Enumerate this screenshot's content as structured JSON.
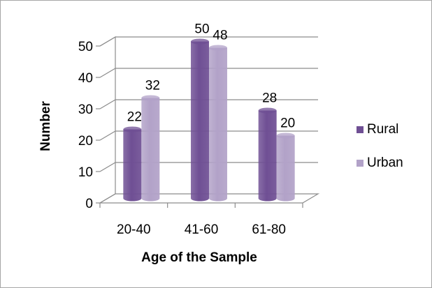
{
  "chart_data": {
    "type": "bar",
    "style": "3d-cylinder",
    "xlabel": "Age of the Sample",
    "ylabel": "Number",
    "categories": [
      "20-40",
      "41-60",
      "61-80"
    ],
    "series": [
      {
        "name": "Rural",
        "values": [
          22,
          50,
          28
        ],
        "color": "#6f4f94"
      },
      {
        "name": "Urban",
        "values": [
          32,
          48,
          20
        ],
        "color": "#b2a2c8"
      }
    ],
    "ylim": [
      0,
      50
    ],
    "yticks": [
      0,
      10,
      20,
      30,
      40,
      50
    ],
    "grid": true,
    "legend": "right"
  }
}
